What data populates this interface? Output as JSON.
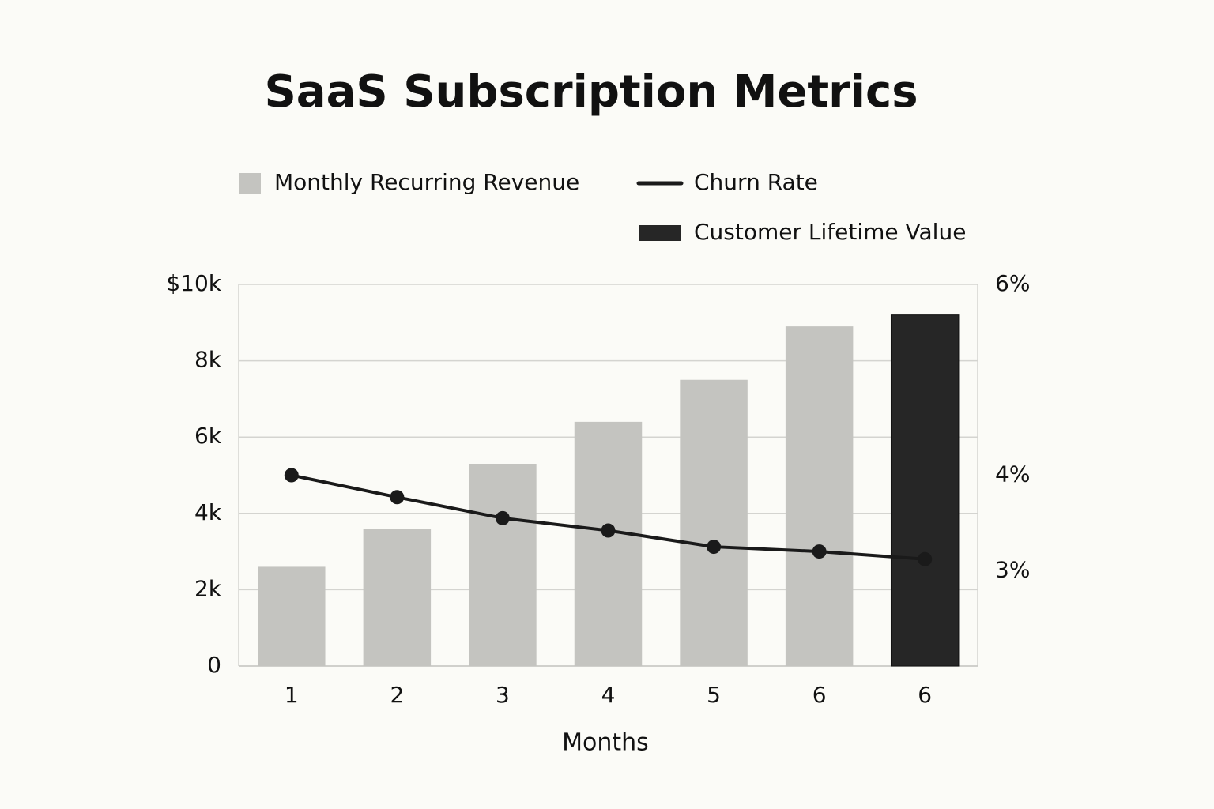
{
  "chart_data": {
    "type": "bar",
    "title": "SaaS Subscription Metrics",
    "x_label": "Months",
    "categories": [
      "1",
      "2",
      "3",
      "4",
      "5",
      "6",
      "6"
    ],
    "series": [
      {
        "name": "Monthly Recurring Revenue",
        "type": "bar",
        "color": "#c4c4c0",
        "values": [
          2600,
          3600,
          5300,
          6400,
          7500,
          8900,
          null
        ]
      },
      {
        "name": "Churn Rate",
        "type": "line",
        "axis": "y2",
        "color": "#1a1a1a",
        "values": [
          4.0,
          3.77,
          3.55,
          3.42,
          3.25,
          3.2,
          3.12
        ]
      },
      {
        "name": "Customer Lifetime Value",
        "type": "bar",
        "color": "#262626",
        "values": [
          null,
          null,
          null,
          null,
          null,
          null,
          9200
        ]
      }
    ],
    "ylim": [
      0,
      10000
    ],
    "yticks": [
      0,
      {
        "value": 2000,
        "label": "2k"
      },
      {
        "value": 4000,
        "label": "4k"
      },
      {
        "value": 6000,
        "label": "6k"
      },
      {
        "value": 8000,
        "label": "8k"
      },
      {
        "value": 10000,
        "label": "$10k"
      }
    ],
    "y2lim": [
      2,
      6
    ],
    "y2ticks": [
      {
        "value": 3,
        "label": "3%"
      },
      {
        "value": 4,
        "label": "4%"
      },
      {
        "value": 6,
        "label": "6%"
      }
    ],
    "grid": true
  }
}
